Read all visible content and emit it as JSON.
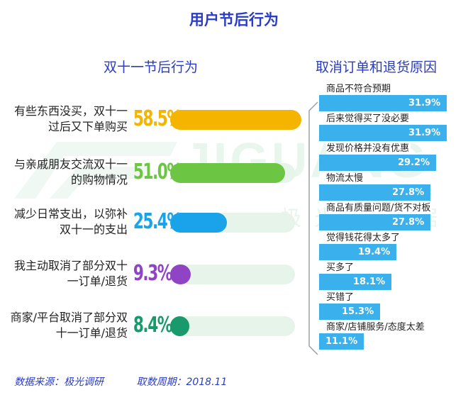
{
  "title": "用户节后行为",
  "watermark": {
    "latin": "JIGUANG",
    "cn": "极光大数据"
  },
  "left_chart": {
    "title": "双十一节后行为",
    "track_color": "#e6f4ea",
    "items": [
      {
        "label": "有些东西没买，双十一过后又下单购买",
        "value_text": "58.5%",
        "color": "#f5b400"
      },
      {
        "label": "与亲戚朋友交流双十一的购物情况",
        "value_text": "51.0%",
        "color": "#6cc644"
      },
      {
        "label": "减少日常支出，以弥补双十一的支出",
        "value_text": "25.4%",
        "color": "#1aa3e8"
      },
      {
        "label": "我主动取消了部分双十一订单/退货",
        "value_text": "9.3%",
        "color": "#8e44c4"
      },
      {
        "label": "商家/平台取消了部分双十一订单/退货",
        "value_text": "8.4%",
        "color": "#1a9a6c"
      }
    ]
  },
  "right_chart": {
    "title": "取消订单和退货原因",
    "bar_color": "#3ab0ec",
    "items": [
      {
        "label": "商品不符合预期",
        "value_text": "31.9%"
      },
      {
        "label": "后来觉得买了没必要",
        "value_text": "31.9%"
      },
      {
        "label": "发现价格并没有优惠",
        "value_text": "29.2%"
      },
      {
        "label": "物流太慢",
        "value_text": "27.8%"
      },
      {
        "label": "商品有质量问题/货不对板",
        "value_text": "27.8%"
      },
      {
        "label": "觉得钱花得太多了",
        "value_text": "19.4%"
      },
      {
        "label": "买多了",
        "value_text": "18.1%"
      },
      {
        "label": "买错了",
        "value_text": "15.3%"
      },
      {
        "label": "商家/店铺服务/态度太差",
        "value_text": "11.1%"
      }
    ]
  },
  "chart_data": [
    {
      "type": "bar",
      "title": "双十一节后行为",
      "categories": [
        "有些东西没买，双十一过后又下单购买",
        "与亲戚朋友交流双十一的购物情况",
        "减少日常支出，以弥补双十一的支出",
        "我主动取消了部分双十一订单/退货",
        "商家/平台取消了部分双十一订单/退货"
      ],
      "values": [
        58.5,
        51.0,
        25.4,
        9.3,
        8.4
      ],
      "unit": "%"
    },
    {
      "type": "bar",
      "title": "取消订单和退货原因",
      "categories": [
        "商品不符合预期",
        "后来觉得买了没必要",
        "发现价格并没有优惠",
        "物流太慢",
        "商品有质量问题/货不对板",
        "觉得钱花得太多了",
        "买多了",
        "买错了",
        "商家/店铺服务/态度太差"
      ],
      "values": [
        31.9,
        31.9,
        29.2,
        27.8,
        27.8,
        19.4,
        18.1,
        15.3,
        11.1
      ],
      "unit": "%"
    }
  ],
  "footer": {
    "source": "数据来源：极光调研",
    "period": "取数周期：2018.11"
  }
}
